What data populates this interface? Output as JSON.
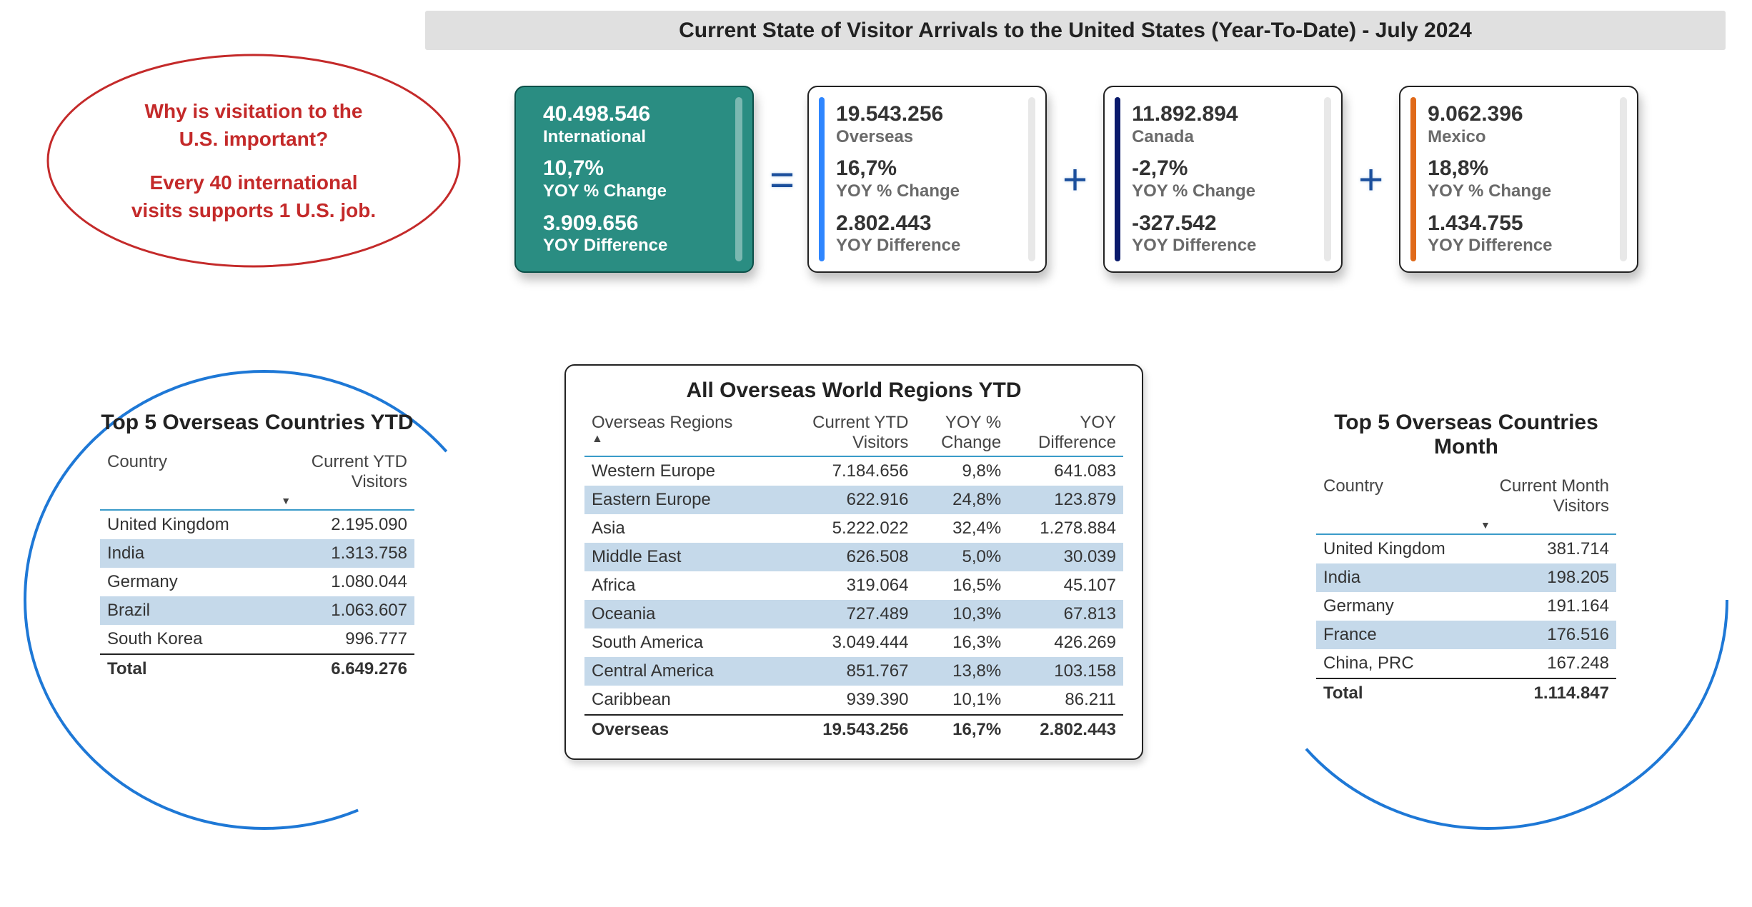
{
  "title": "Current State of Visitor Arrivals to the United States (Year-To-Date) - July 2024",
  "callout": {
    "q1": "Why is visitation to the",
    "q2": "U.S. important?",
    "a1": "Every 40 international",
    "a2": "visits supports 1 U.S. job.",
    "stroke": "#c42a2a"
  },
  "arc_color": "#1e78d6",
  "metrics": {
    "equals": "=",
    "plus": "+",
    "cards": [
      {
        "accent": "#2a8d82",
        "primary": true,
        "v1": "40.498.546",
        "l1": "International",
        "v2": "10,7%",
        "l2": "YOY % Change",
        "v3": "3.909.656",
        "l3": "YOY Difference"
      },
      {
        "accent": "#2f86ff",
        "v1": "19.543.256",
        "l1": "Overseas",
        "v2": "16,7%",
        "l2": "YOY % Change",
        "v3": "2.802.443",
        "l3": "YOY Difference"
      },
      {
        "accent": "#0a1a6b",
        "v1": "11.892.894",
        "l1": "Canada",
        "v2": "-2,7%",
        "l2": "YOY % Change",
        "v3": "-327.542",
        "l3": "YOY Difference"
      },
      {
        "accent": "#e06a1a",
        "v1": "9.062.396",
        "l1": "Mexico",
        "v2": "18,8%",
        "l2": "YOY % Change",
        "v3": "1.434.755",
        "l3": "YOY Difference"
      }
    ]
  },
  "top5_ytd": {
    "title": "Top 5 Overseas Countries YTD",
    "col1": "Country",
    "col2a": "Current YTD",
    "col2b": "Visitors",
    "rows": [
      [
        "United Kingdom",
        "2.195.090"
      ],
      [
        "India",
        "1.313.758"
      ],
      [
        "Germany",
        "1.080.044"
      ],
      [
        "Brazil",
        "1.063.607"
      ],
      [
        "South Korea",
        "996.777"
      ]
    ],
    "total_label": "Total",
    "total_value": "6.649.276"
  },
  "top5_month": {
    "title": "Top 5 Overseas Countries Month",
    "col1": "Country",
    "col2a": "Current Month",
    "col2b": "Visitors",
    "rows": [
      [
        "United Kingdom",
        "381.714"
      ],
      [
        "India",
        "198.205"
      ],
      [
        "Germany",
        "191.164"
      ],
      [
        "France",
        "176.516"
      ],
      [
        "China, PRC",
        "167.248"
      ]
    ],
    "total_label": "Total",
    "total_value": "1.114.847"
  },
  "regions": {
    "title": "All Overseas World Regions YTD",
    "h1": "Overseas Regions",
    "h2a": "Current YTD",
    "h2b": "Visitors",
    "h3a": "YOY %",
    "h3b": "Change",
    "h4a": "YOY",
    "h4b": "Difference",
    "rows": [
      [
        "Western Europe",
        "7.184.656",
        "9,8%",
        "641.083"
      ],
      [
        "Eastern Europe",
        "622.916",
        "24,8%",
        "123.879"
      ],
      [
        "Asia",
        "5.222.022",
        "32,4%",
        "1.278.884"
      ],
      [
        "Middle East",
        "626.508",
        "5,0%",
        "30.039"
      ],
      [
        "Africa",
        "319.064",
        "16,5%",
        "45.107"
      ],
      [
        "Oceania",
        "727.489",
        "10,3%",
        "67.813"
      ],
      [
        "South America",
        "3.049.444",
        "16,3%",
        "426.269"
      ],
      [
        "Central America",
        "851.767",
        "13,8%",
        "103.158"
      ],
      [
        "Caribbean",
        "939.390",
        "10,1%",
        "86.211"
      ]
    ],
    "total": [
      "Overseas",
      "19.543.256",
      "16,7%",
      "2.802.443"
    ]
  }
}
